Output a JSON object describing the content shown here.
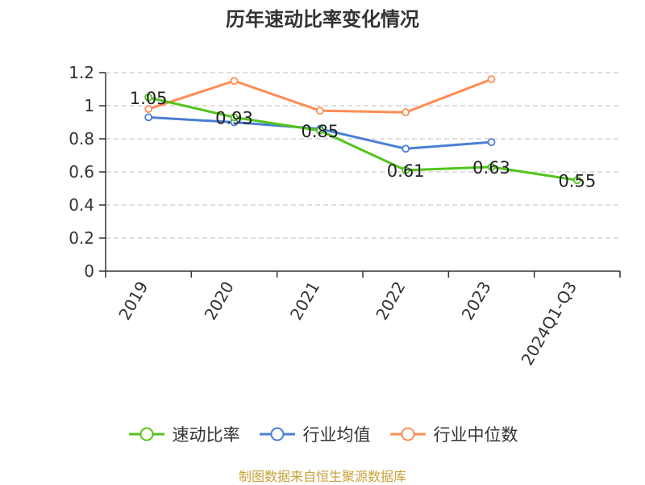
{
  "title": "历年速动比率变化情况",
  "source": "制图数据来自恒生聚源数据库",
  "chart_data": {
    "type": "line",
    "title": "历年速动比率变化情况",
    "categories": [
      "2019",
      "2020",
      "2021",
      "2022",
      "2023",
      "2024Q1-Q3"
    ],
    "ylim": [
      0,
      1.2
    ],
    "yticks": [
      0,
      0.2,
      0.4,
      0.6,
      0.8,
      1,
      1.2
    ],
    "ytick_labels": [
      "0",
      "0.2",
      "0.4",
      "0.6",
      "0.8",
      "1",
      "1.2"
    ],
    "grid": true,
    "legend_position": "bottom",
    "series": [
      {
        "name": "速动比率",
        "color": "#52c41a",
        "values": [
          1.05,
          0.93,
          0.85,
          0.61,
          0.63,
          0.55
        ],
        "labels": [
          "1.05",
          "0.93",
          "0.85",
          "0.61",
          "0.63",
          "0.55"
        ]
      },
      {
        "name": "行业均值",
        "color": "#4a7fd4",
        "values": [
          0.93,
          0.9,
          0.86,
          0.74,
          0.78,
          null
        ],
        "labels": []
      },
      {
        "name": "行业中位数",
        "color": "#ff8c55",
        "values": [
          0.98,
          1.15,
          0.97,
          0.96,
          1.16,
          null
        ],
        "labels": []
      }
    ]
  }
}
